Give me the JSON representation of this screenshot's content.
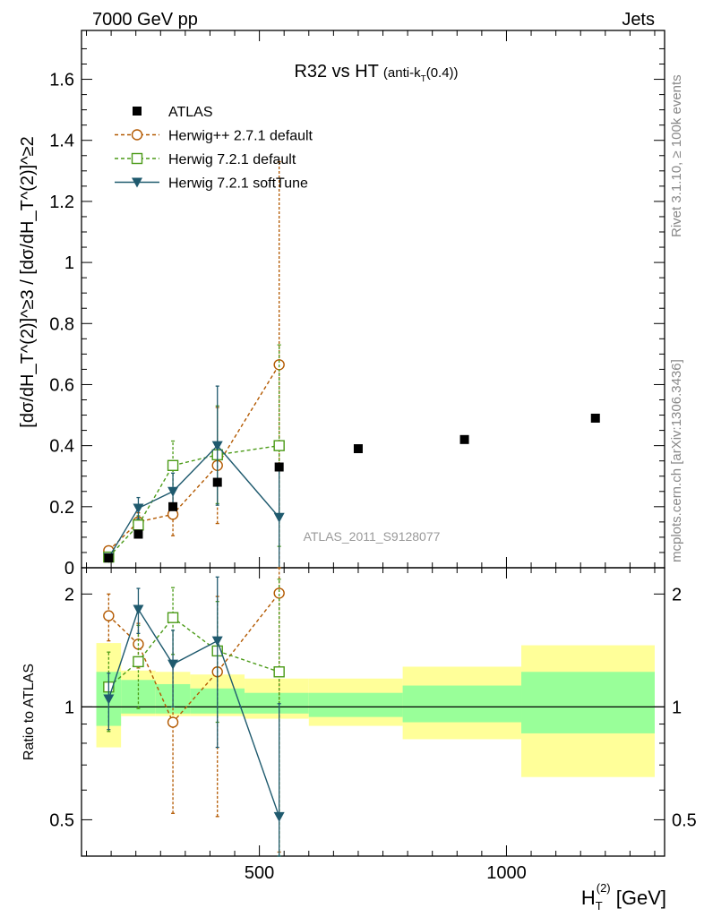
{
  "header": {
    "left": "7000 GeV pp",
    "right": "Jets"
  },
  "side_labels": {
    "rivet": "Rivet 3.1.10, ≥ 100k events",
    "mcplots": "mcplots.cern.ch [arXiv:1306.3436]"
  },
  "main": {
    "title": "R32 vs HT",
    "title_sub_pre": "(anti-k",
    "title_sub_sub": "T",
    "title_sub_post": "(0.4))",
    "analysis_id": "ATLAS_2011_S9128077",
    "ylabel": "[dσ/dH_T^(2)]^≥3 / [dσ/dH_T^(2)]^≥2"
  },
  "ratio": {
    "ylabel": "Ratio to ATLAS"
  },
  "xaxis": {
    "label_pre": "H",
    "label_sub": "T",
    "label_sup": "(2)",
    "label_post": " [GeV]"
  },
  "legend": [
    {
      "label": "ATLAS",
      "key": "atlas"
    },
    {
      "label": "Herwig++ 2.7.1 default",
      "key": "hpp"
    },
    {
      "label": "Herwig 7.2.1 default",
      "key": "h7"
    },
    {
      "label": "Herwig 7.2.1 softTune",
      "key": "h7soft"
    }
  ],
  "colors": {
    "atlas": "#000000",
    "hpp": "#b35900",
    "h7": "#4a9a16",
    "h7soft": "#1f5a6e",
    "band_outer": "#ffff99",
    "band_inner": "#99ff99",
    "analysis_id": "#999999",
    "side_label": "#888888"
  },
  "chart_data": [
    {
      "type": "scatter",
      "x_scale": "linear",
      "xlim": [
        140,
        1320
      ],
      "ylim": [
        0,
        1.76
      ],
      "yticks": [
        0,
        0.2,
        0.4,
        0.6,
        0.8,
        1,
        1.2,
        1.4,
        1.6
      ],
      "ytick_labels": [
        "0",
        "0.2",
        "0.4",
        "0.6",
        "0.8",
        "1",
        "1.2",
        "1.4",
        "1.6"
      ],
      "series": [
        {
          "name": "ATLAS",
          "key": "atlas",
          "x": [
            195,
            255,
            325,
            415,
            540,
            700,
            915,
            1180
          ],
          "y": [
            0.032,
            0.11,
            0.2,
            0.28,
            0.33,
            0.39,
            0.42,
            0.49
          ],
          "err_lo": [
            0,
            0,
            0,
            0,
            0,
            0,
            0,
            0
          ],
          "err_hi": [
            0,
            0,
            0,
            0,
            0,
            0,
            0,
            0
          ]
        },
        {
          "name": "Herwig++ 2.7.1 default",
          "key": "hpp",
          "x": [
            195,
            255,
            325,
            415,
            540
          ],
          "y": [
            0.056,
            0.15,
            0.175,
            0.335,
            0.665
          ],
          "err_lo": [
            0.01,
            0.03,
            0.07,
            0.19,
            0.665
          ],
          "err_hi": [
            0.01,
            0.03,
            0.07,
            0.19,
            0.665
          ]
        },
        {
          "name": "Herwig 7.2.1 default",
          "key": "h7",
          "x": [
            195,
            255,
            325,
            415,
            540
          ],
          "y": [
            0.035,
            0.14,
            0.335,
            0.37,
            0.4
          ],
          "err_lo": [
            0.008,
            0.03,
            0.08,
            0.16,
            0.33
          ],
          "err_hi": [
            0.008,
            0.03,
            0.08,
            0.16,
            0.33
          ]
        },
        {
          "name": "Herwig 7.2.1 softTune",
          "key": "h7soft",
          "x": [
            195,
            255,
            325,
            415,
            540
          ],
          "y": [
            0.033,
            0.195,
            0.25,
            0.4,
            0.165
          ],
          "err_lo": [
            0.008,
            0.035,
            0.06,
            0.195,
            0.165
          ],
          "err_hi": [
            0.008,
            0.035,
            0.06,
            0.195,
            0.165
          ]
        }
      ]
    },
    {
      "type": "scatter",
      "x_scale": "linear",
      "y_scale": "log",
      "xlim": [
        140,
        1320
      ],
      "ylim": [
        0.4,
        2.35
      ],
      "xticks": [
        500,
        1000
      ],
      "xtick_labels": [
        "500",
        "1000"
      ],
      "yticks": [
        0.5,
        1,
        2
      ],
      "ytick_labels": [
        "0.5",
        "1",
        "2"
      ],
      "reference_line": 1,
      "uncertainty_bands": [
        {
          "x_lo": 170,
          "x_hi": 220,
          "outer": [
            0.78,
            1.48
          ],
          "inner": [
            0.89,
            1.24
          ]
        },
        {
          "x_lo": 220,
          "x_hi": 290,
          "outer": [
            0.945,
            1.25
          ],
          "inner": [
            0.96,
            1.18
          ]
        },
        {
          "x_lo": 290,
          "x_hi": 360,
          "outer": [
            0.945,
            1.24
          ],
          "inner": [
            0.96,
            1.15
          ]
        },
        {
          "x_lo": 360,
          "x_hi": 470,
          "outer": [
            0.945,
            1.22
          ],
          "inner": [
            0.96,
            1.12
          ]
        },
        {
          "x_lo": 470,
          "x_hi": 600,
          "outer": [
            0.93,
            1.19
          ],
          "inner": [
            0.96,
            1.09
          ]
        },
        {
          "x_lo": 600,
          "x_hi": 790,
          "outer": [
            0.89,
            1.19
          ],
          "inner": [
            0.94,
            1.09
          ]
        },
        {
          "x_lo": 790,
          "x_hi": 1030,
          "outer": [
            0.82,
            1.28
          ],
          "inner": [
            0.91,
            1.14
          ]
        },
        {
          "x_lo": 1030,
          "x_hi": 1300,
          "outer": [
            0.65,
            1.46
          ],
          "inner": [
            0.85,
            1.24
          ]
        }
      ],
      "series": [
        {
          "name": "Herwig++ 2.7.1 default",
          "key": "hpp",
          "x": [
            195,
            255,
            325,
            415,
            540
          ],
          "y": [
            1.75,
            1.47,
            0.91,
            1.24,
            2.01
          ],
          "err_lo": [
            0.25,
            0.2,
            0.39,
            0.73,
            1.6
          ],
          "err_hi": [
            0.25,
            0.2,
            0.39,
            0.73,
            1.6
          ]
        },
        {
          "name": "Herwig 7.2.1 default",
          "key": "h7",
          "x": [
            195,
            255,
            325,
            415,
            540
          ],
          "y": [
            1.13,
            1.32,
            1.73,
            1.41,
            1.24
          ],
          "err_lo": [
            0.27,
            0.33,
            0.35,
            0.5,
            0.95
          ],
          "err_hi": [
            0.27,
            0.33,
            0.35,
            0.5,
            0.95
          ]
        },
        {
          "name": "Herwig 7.2.1 softTune",
          "key": "h7soft",
          "x": [
            195,
            255,
            325,
            415,
            540
          ],
          "y": [
            1.05,
            1.82,
            1.3,
            1.5,
            0.51
          ],
          "err_lo": [
            0.18,
            0.25,
            0.3,
            0.72,
            0.51
          ],
          "err_hi": [
            0.18,
            0.25,
            0.3,
            0.72,
            0.51
          ]
        }
      ]
    }
  ]
}
